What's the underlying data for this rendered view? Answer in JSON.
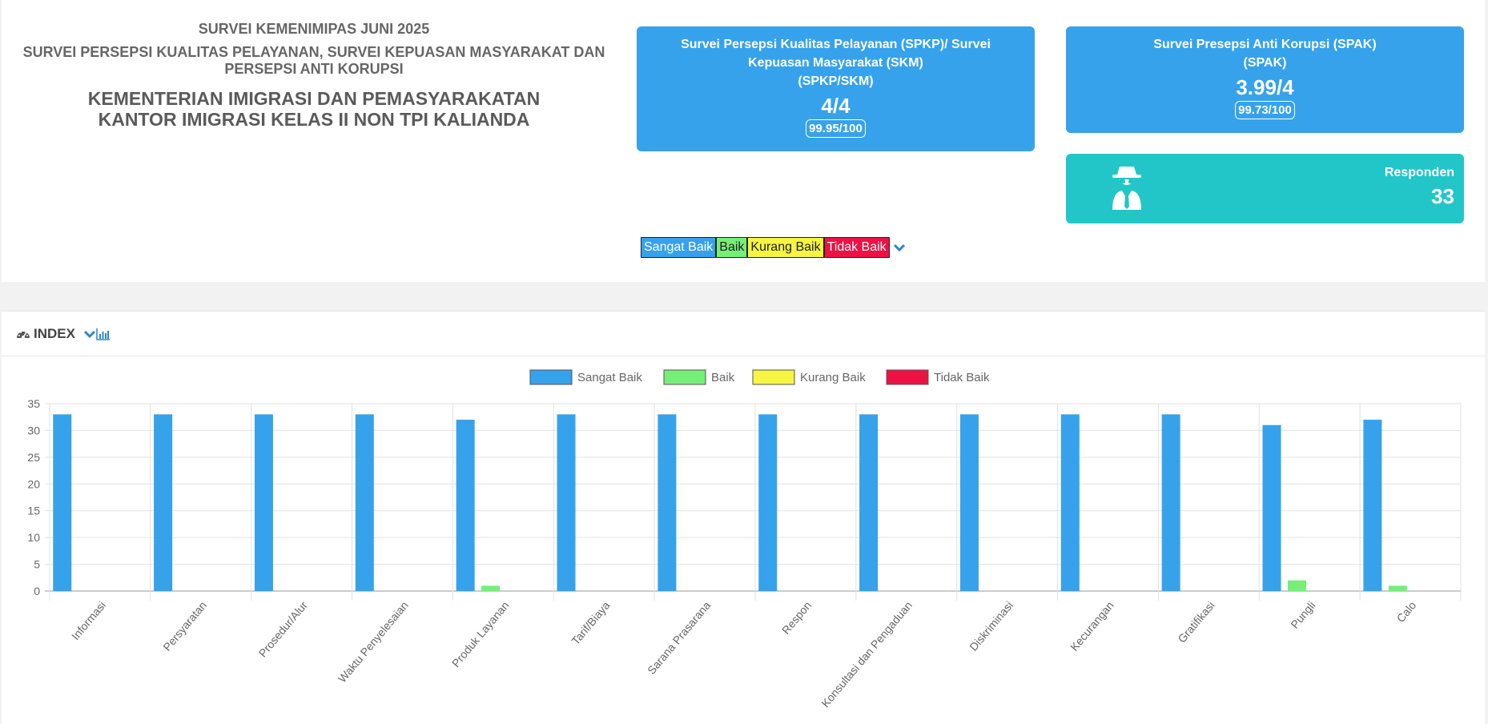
{
  "header": {
    "line1": "SURVEI KEMENIMIPAS JUNI 2025",
    "line2a": "SURVEI PERSEPSI KUALITAS PELAYANAN, SURVEI KEPUASAN MASYARAKAT DAN",
    "line2b": "PERSEPSI ANTI KORUPSI",
    "line3a": "KEMENTERIAN IMIGRASI DAN PEMASYARAKATAN",
    "line3b": "KANTOR IMIGRASI KELAS II NON TPI KALIANDA"
  },
  "spkp_card": {
    "title_line1": "Survei Persepsi Kualitas Pelayanan (SPKP)/ Survei",
    "title_line2": "Kepuasan Masyarakat (SKM)",
    "title_line3": "(SPKP/SKM)",
    "score": "4/4",
    "index": "99.95/100"
  },
  "spak_card": {
    "title_line1": "Survei Presepsi Anti Korupsi (SPAK)",
    "title_line2": "(SPAK)",
    "score": "3.99/4",
    "index": "99.73/100"
  },
  "responden_card": {
    "icon": "user-secret-icon",
    "label": "Responden",
    "value": "33"
  },
  "legend_strip": {
    "sangat_baik": "Sangat Baik",
    "baik": "Baik",
    "kurang_baik": "Kurang Baik",
    "tidak_baik": "Tidak Baik"
  },
  "index_section": {
    "title": "INDEX"
  },
  "colors": {
    "sangat_baik": "#36a2eb",
    "baik": "#77ee77",
    "kurang_baik": "#f5f542",
    "tidak_baik": "#ee1144",
    "teal": "#22c6c8"
  },
  "chart_data": {
    "type": "bar",
    "categories": [
      "Informasi",
      "Persyaratan",
      "Prosedur/Alur",
      "Waktu Penyelesaian",
      "Produk Layanan",
      "Tarif/Biaya",
      "Sarana Prasarana",
      "Respon",
      "Konsultasi dan Pengaduan",
      "Diskriminasi",
      "Kecurangan",
      "Gratifikasi",
      "Pungli",
      "Calo"
    ],
    "series": [
      {
        "name": "Sangat Baik",
        "color": "#36a2eb",
        "values": [
          33,
          33,
          33,
          33,
          32,
          33,
          33,
          33,
          33,
          33,
          33,
          33,
          31,
          32
        ]
      },
      {
        "name": "Baik",
        "color": "#77ee77",
        "values": [
          0,
          0,
          0,
          0,
          1,
          0,
          0,
          0,
          0,
          0,
          0,
          0,
          2,
          1
        ]
      },
      {
        "name": "Kurang Baik",
        "color": "#f5f542",
        "values": [
          0,
          0,
          0,
          0,
          0,
          0,
          0,
          0,
          0,
          0,
          0,
          0,
          0,
          0
        ]
      },
      {
        "name": "Tidak Baik",
        "color": "#ee1144",
        "values": [
          0,
          0,
          0,
          0,
          0,
          0,
          0,
          0,
          0,
          0,
          0,
          0,
          0,
          0
        ]
      }
    ],
    "ylim": [
      0,
      35
    ],
    "yticks": [
      0,
      5,
      10,
      15,
      20,
      25,
      30,
      35
    ],
    "grid": true,
    "legend": "top"
  }
}
